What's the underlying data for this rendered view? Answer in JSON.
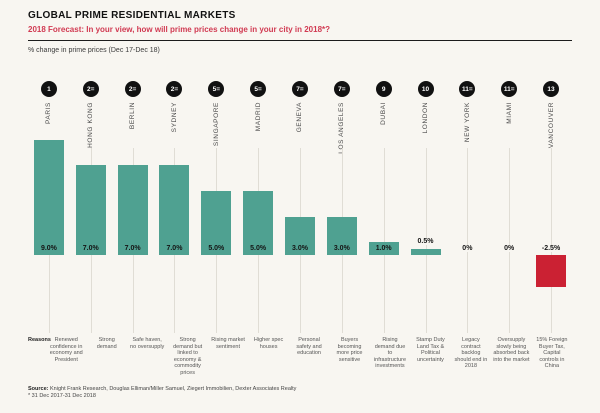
{
  "header": {
    "title": "GLOBAL PRIME RESIDENTIAL MARKETS",
    "subtitle": "2018 Forecast: In your view, how will prime prices change in your city in 2018*?",
    "axis_note": "% change in prime prices (Dec 17-Dec 18)"
  },
  "chart_data": {
    "type": "bar",
    "title": "2018 Forecast: prime price change by city",
    "unit": "%",
    "ylim": [
      -2.5,
      9
    ],
    "grid": "vertical column guides only",
    "categories": [
      "PARIS",
      "HONG KONG",
      "BERLIN",
      "SYDNEY",
      "SINGAPORE",
      "MADRID",
      "GENEVA",
      "LOS ANGELES",
      "DUBAI",
      "LONDON",
      "NEW YORK",
      "MIAMI",
      "VANCOUVER"
    ],
    "ranks": [
      "1",
      "2=",
      "2=",
      "2=",
      "5=",
      "5=",
      "7=",
      "7=",
      "9",
      "10",
      "11=",
      "11=",
      "13"
    ],
    "values": [
      9.0,
      7.0,
      7.0,
      7.0,
      5.0,
      5.0,
      3.0,
      3.0,
      1.0,
      0.5,
      0,
      0,
      -2.5
    ],
    "value_labels": [
      "9.0%",
      "7.0%",
      "7.0%",
      "7.0%",
      "5.0%",
      "5.0%",
      "3.0%",
      "3.0%",
      "1.0%",
      "0.5%",
      "0%",
      "0%",
      "-2.5%"
    ],
    "reasons": [
      "Renewed confidence in economy and President",
      "Strong demand",
      "Safe haven, no oversupply",
      "Strong demand but linked to economy & commodity prices",
      "Rising market sentiment",
      "Higher spec houses",
      "Personal safety and education",
      "Buyers becoming more price sensitive",
      "Rising demand due to infrastructure investments",
      "Stamp Duty Land Tax & Political uncertainty",
      "Legacy contract backlog should end in 2018",
      "Oversupply slowly being absorbed back into the market",
      "15% Foreign Buyer Tax, Capital controls in China"
    ]
  },
  "reasons_label": "Reasons",
  "footer": {
    "source_label": "Source:",
    "source_text": "Knight Frank Research, Douglas Elliman/Miller Samuel, Ziegert Immobilien, Dexter Associates Realty",
    "footnote": "* 31 Dec 2017-31 Dec 2018"
  },
  "colors": {
    "positive_bar": "#4fa191",
    "negative_bar": "#cb2133",
    "accent_red": "#d13a52",
    "badge": "#111111",
    "background": "#f8f6f1"
  }
}
